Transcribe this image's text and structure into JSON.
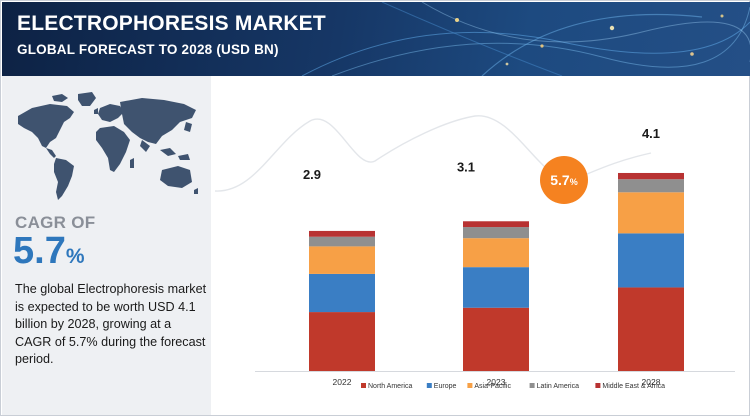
{
  "header": {
    "title": "ELECTROPHORESIS MARKET",
    "subtitle": "GLOBAL FORECAST TO 2028 (USD BN)"
  },
  "summary": {
    "cagr_label": "CAGR OF",
    "cagr_number": "5.7",
    "cagr_percent": "%",
    "description": "The global Electrophoresis market is expected to be worth USD 4.1 billion by 2028, growing at a CAGR of 5.7% during the forecast period."
  },
  "badge": {
    "value": "5.7",
    "percent": "%"
  },
  "colors": {
    "header_dark": "#0d2244",
    "accent_blue": "#2e77bc",
    "badge_orange": "#f58220",
    "north_america": "#c0392b",
    "europe": "#3a7ec4",
    "asia_pacific": "#f7a046",
    "latin_america": "#8f8f8f",
    "middle_east_africa": "#b83232"
  },
  "chart_data": {
    "type": "bar",
    "stacked": true,
    "categories": [
      "2022",
      "2023",
      "2028"
    ],
    "totals": [
      "2.9",
      "3.1",
      "4.1"
    ],
    "series": [
      {
        "name": "North America",
        "color": "#c0392b",
        "values": [
          1.22,
          1.31,
          1.73
        ]
      },
      {
        "name": "Europe",
        "color": "#3a7ec4",
        "values": [
          0.79,
          0.84,
          1.12
        ]
      },
      {
        "name": "Asia-Pacific",
        "color": "#f7a046",
        "values": [
          0.57,
          0.6,
          0.85
        ]
      },
      {
        "name": "Latin America",
        "color": "#8f8f8f",
        "values": [
          0.2,
          0.23,
          0.27
        ]
      },
      {
        "name": "Middle East & Africa",
        "color": "#b83232",
        "values": [
          0.12,
          0.12,
          0.13
        ]
      }
    ],
    "legend_position": "bottom",
    "grid": false,
    "ylim": [
      0,
      5
    ]
  }
}
